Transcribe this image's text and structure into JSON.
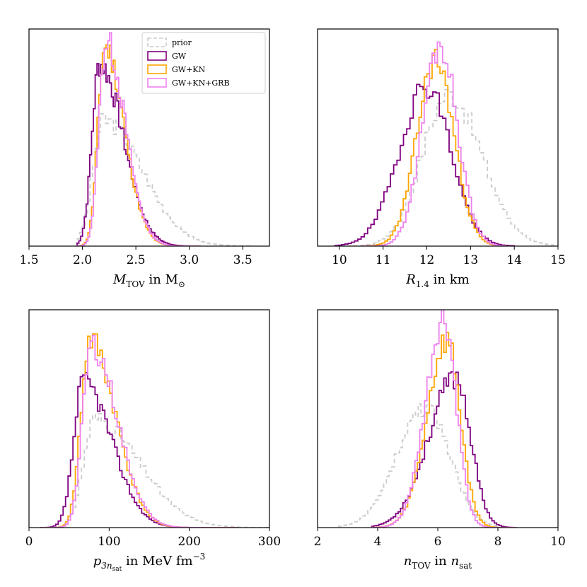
{
  "colors": {
    "prior": "#cccccc",
    "GW": "#800080",
    "GW+KN": "#ffa500",
    "GW+KN+GRB": "#ee82ee"
  },
  "legend": [
    {
      "key": "prior",
      "label": "prior",
      "dash": true
    },
    {
      "key": "GW",
      "label": "GW",
      "dash": false
    },
    {
      "key": "GW+KN",
      "label": "GW+KN",
      "dash": false
    },
    {
      "key": "GW+KN+GRB",
      "label": "GW+KN+GRB",
      "dash": false
    }
  ],
  "chart_data": [
    {
      "id": "mtov",
      "type": "histogram",
      "xlabel_main": "M",
      "xlabel_sub": "TOV",
      "xlabel_rest": " in M",
      "xlabel_unit_sub": "⊙",
      "xlim": [
        1.5,
        3.75
      ],
      "xticks": [
        1.5,
        2.0,
        2.5,
        3.0,
        3.5
      ],
      "xtick_labels": [
        "1.5",
        "2.0",
        "2.5",
        "3.0",
        "3.5"
      ],
      "grid": false,
      "legend": true,
      "legend_position": "top-right",
      "series": [
        {
          "name": "prior",
          "peak": 2.2,
          "sl": 0.1,
          "sr": 0.36,
          "height": 0.58,
          "lo": 1.95,
          "hi": 3.6,
          "bins": 68,
          "seed": 3
        },
        {
          "name": "GW",
          "peak": 2.16,
          "sl": 0.07,
          "sr": 0.22,
          "height": 0.84,
          "lo": 1.95,
          "hi": 3.1,
          "bins": 68,
          "seed": 7
        },
        {
          "name": "GW+KN",
          "peak": 2.21,
          "sl": 0.065,
          "sr": 0.18,
          "height": 0.92,
          "lo": 1.95,
          "hi": 3.1,
          "bins": 68,
          "seed": 11
        },
        {
          "name": "GW+KN+GRB",
          "peak": 2.22,
          "sl": 0.065,
          "sr": 0.18,
          "height": 0.94,
          "lo": 1.95,
          "hi": 3.1,
          "bins": 68,
          "seed": 13
        }
      ]
    },
    {
      "id": "r14",
      "type": "histogram",
      "xlabel_main": "R",
      "xlabel_sub": "1.4",
      "xlabel_rest": " in km",
      "xlabel_unit_sub": "",
      "xlim": [
        9.5,
        15.0
      ],
      "xticks": [
        10,
        11,
        12,
        13,
        14,
        15
      ],
      "xtick_labels": [
        "10",
        "11",
        "12",
        "13",
        "14",
        "15"
      ],
      "grid": false,
      "legend": false,
      "series": [
        {
          "name": "prior",
          "peak": 12.5,
          "sl": 0.6,
          "sr": 0.75,
          "height": 0.7,
          "lo": 10.0,
          "hi": 14.9,
          "bins": 55,
          "seed": 17
        },
        {
          "name": "GW",
          "peak": 12.0,
          "sl": 0.62,
          "sr": 0.55,
          "height": 0.74,
          "lo": 9.9,
          "hi": 14.0,
          "bins": 55,
          "seed": 19
        },
        {
          "name": "GW+KN",
          "peak": 12.2,
          "sl": 0.42,
          "sr": 0.42,
          "height": 0.86,
          "lo": 10.5,
          "hi": 13.8,
          "bins": 55,
          "seed": 23
        },
        {
          "name": "GW+KN+GRB",
          "peak": 12.3,
          "sl": 0.4,
          "sr": 0.4,
          "height": 0.93,
          "lo": 10.5,
          "hi": 13.8,
          "bins": 55,
          "seed": 29
        }
      ]
    },
    {
      "id": "p3nsat",
      "type": "histogram",
      "xlabel_main": "p",
      "xlabel_sub": "3n",
      "xlabel_subsub": "sat",
      "xlabel_rest": " in MeV fm",
      "xlabel_sup": "−3",
      "xlim": [
        0,
        300
      ],
      "xticks": [
        0,
        100,
        200,
        300
      ],
      "xtick_labels": [
        "0",
        "100",
        "200",
        "300"
      ],
      "grid": false,
      "legend": false,
      "series": [
        {
          "name": "prior",
          "peak": 82,
          "sl": 14,
          "sr": 55,
          "height": 0.5,
          "lo": 20,
          "hi": 300,
          "bins": 80,
          "seed": 31
        },
        {
          "name": "GW",
          "peak": 68,
          "sl": 12,
          "sr": 35,
          "height": 0.67,
          "lo": 15,
          "hi": 260,
          "bins": 80,
          "seed": 37
        },
        {
          "name": "GW+KN",
          "peak": 76,
          "sl": 11,
          "sr": 32,
          "height": 0.86,
          "lo": 15,
          "hi": 260,
          "bins": 80,
          "seed": 41
        },
        {
          "name": "GW+KN+GRB",
          "peak": 78,
          "sl": 11,
          "sr": 32,
          "height": 0.84,
          "lo": 15,
          "hi": 260,
          "bins": 80,
          "seed": 43
        }
      ]
    },
    {
      "id": "ntov",
      "type": "histogram",
      "xlabel_main": "n",
      "xlabel_sub": "TOV",
      "xlabel_rest": " in ",
      "xlabel_rest_italic": "n",
      "xlabel_unit_sub": "sat",
      "xlim": [
        2,
        10
      ],
      "xticks": [
        2,
        4,
        6,
        8,
        10
      ],
      "xtick_labels": [
        "2",
        "4",
        "6",
        "8",
        "10"
      ],
      "grid": false,
      "legend": false,
      "series": [
        {
          "name": "prior",
          "peak": 5.6,
          "sl": 0.95,
          "sr": 0.8,
          "height": 0.55,
          "lo": 2.7,
          "hi": 8.0,
          "bins": 60,
          "seed": 47
        },
        {
          "name": "GW",
          "peak": 6.6,
          "sl": 0.9,
          "sr": 0.5,
          "height": 0.69,
          "lo": 3.8,
          "hi": 8.6,
          "bins": 60,
          "seed": 53
        },
        {
          "name": "GW+KN",
          "peak": 6.3,
          "sl": 0.65,
          "sr": 0.45,
          "height": 0.86,
          "lo": 3.8,
          "hi": 8.6,
          "bins": 60,
          "seed": 59
        },
        {
          "name": "GW+KN+GRB",
          "peak": 6.2,
          "sl": 0.6,
          "sr": 0.42,
          "height": 0.94,
          "lo": 3.8,
          "hi": 8.6,
          "bins": 60,
          "seed": 61
        }
      ]
    }
  ]
}
